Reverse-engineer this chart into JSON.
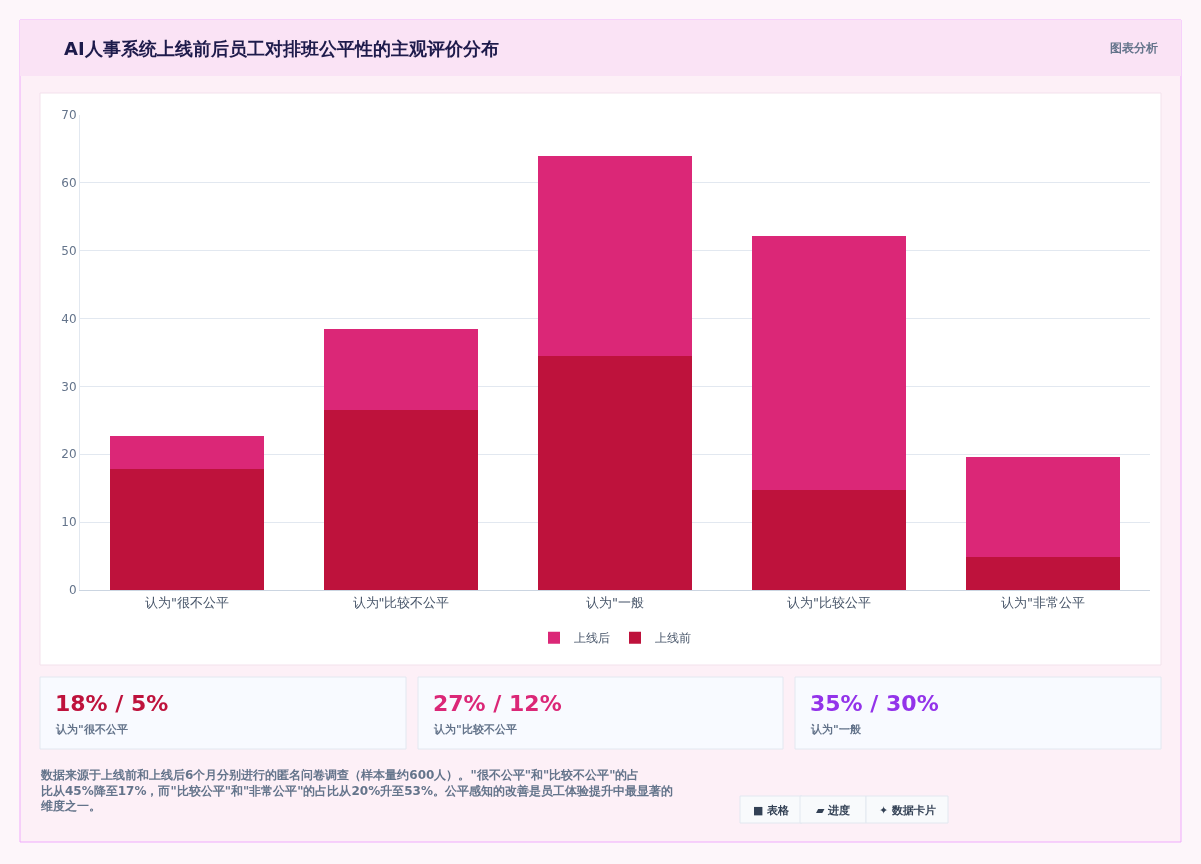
{
  "chart_data": [
    {
      "type": "bar",
      "title": "AI人事系统上线前后员工对排班公平性的主观评价分布",
      "subtitle": "图表分析",
      "categories": [
        "认为\"很不公平",
        "认为\"比较不公平",
        "认为\"一般",
        "认为\"比较公平",
        "认为\"非常公平"
      ],
      "series": [
        {
          "name": "上线前",
          "color": "#be123c",
          "values": [
            17.8,
            26.6,
            34.5,
            14.8,
            4.9
          ]
        },
        {
          "name": "上线后",
          "color": "#db2777",
          "values": [
            4.9,
            11.8,
            29.5,
            37.4,
            14.7
          ]
        }
      ],
      "stacked": true,
      "ylim": [
        0,
        70
      ],
      "yticks": [
        0,
        10,
        20,
        30,
        40,
        50,
        60,
        70
      ],
      "grid": true,
      "legend": "bottom",
      "annotations": [
        "数据来源于上线前和上线后6个月分别进行的匿名问卷调查（样本量约600人）。\"很不公平\"和\"比较不公平\"的占比从45%降至17%，而\"比较公平\"和\"非常公平\"的占比从20%升至53%。公平感知的改善是员工体验提升中最显著的维度之一。",
        "■ 表格",
        "▰ 进度",
        "✦ 数据卡片"
      ]
    },
    {
      "type": "other",
      "colors": [
        "#be123c",
        "#db2777",
        "#9333ea"
      ],
      "annotations": [
        "18% / 5%",
        "认为\"很不公平",
        "27% / 12%",
        "认为\"比较不公平",
        "35% / 30%",
        "认为\"一般"
      ]
    }
  ]
}
